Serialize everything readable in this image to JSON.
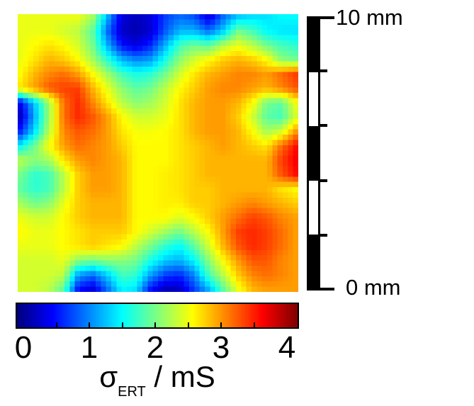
{
  "chart_data": {
    "type": "heatmap",
    "title": "",
    "xlabel": "",
    "ylabel": "",
    "colormap": "jet",
    "vmin": -0.1,
    "vmax": 4.2,
    "colorbar": {
      "label_symbol": "σ",
      "label_subscript": "ERT",
      "label_units": " / mS",
      "tick_values": [
        0,
        1,
        2,
        3,
        4
      ],
      "tick_labels": [
        "0",
        "1",
        "2",
        "3",
        "4"
      ],
      "minor_tick_values": [
        0.5,
        1,
        1.5,
        2,
        2.5,
        3,
        3.5
      ],
      "orientation": "horizontal"
    },
    "scalebar": {
      "top_label": "10 mm",
      "bottom_label": "0 mm",
      "length_mm": 10,
      "segments": 5,
      "colors": [
        "#000000",
        "#ffffff"
      ]
    },
    "grid_values_mS": [
      [
        2.5,
        2.5,
        2.5,
        2.5,
        2.5,
        2.2,
        1.2,
        0.3,
        0.15,
        0.3,
        0.7,
        0.9,
        0.8,
        0.3,
        0.9,
        1.3,
        1.4,
        1.4,
        1.5,
        1.5
      ],
      [
        2.5,
        2.5,
        2.5,
        2.4,
        2.3,
        1.9,
        0.9,
        0.2,
        0.1,
        0.25,
        0.8,
        1.2,
        1.2,
        0.9,
        1.3,
        2.0,
        1.8,
        1.5,
        1.4,
        1.4
      ],
      [
        2.5,
        2.6,
        2.7,
        2.6,
        2.4,
        2.0,
        1.2,
        0.5,
        0.3,
        0.6,
        1.2,
        1.8,
        2.0,
        1.9,
        2.3,
        2.5,
        2.3,
        2.0,
        1.8,
        1.7
      ],
      [
        2.5,
        2.7,
        2.9,
        2.8,
        2.6,
        2.2,
        1.7,
        1.2,
        1.0,
        1.1,
        1.6,
        2.1,
        2.4,
        2.6,
        2.8,
        2.9,
        2.8,
        2.6,
        2.1,
        2.0
      ],
      [
        2.6,
        2.9,
        3.1,
        3.2,
        3.0,
        2.6,
        2.2,
        1.8,
        1.6,
        1.7,
        2.0,
        2.4,
        2.7,
        2.9,
        3.0,
        3.1,
        3.1,
        3.0,
        3.2,
        3.4
      ],
      [
        2.7,
        3.0,
        3.3,
        3.4,
        3.4,
        2.9,
        2.5,
        2.1,
        1.9,
        2.0,
        2.3,
        2.6,
        2.8,
        3.0,
        3.1,
        3.1,
        3.0,
        2.9,
        3.1,
        3.3
      ],
      [
        0.4,
        1.3,
        2.2,
        3.2,
        3.5,
        3.1,
        2.7,
        2.3,
        2.1,
        2.2,
        2.4,
        2.7,
        2.9,
        3.0,
        3.0,
        2.9,
        2.6,
        2.0,
        1.9,
        2.5
      ],
      [
        0.2,
        1.2,
        2.2,
        3.2,
        3.5,
        3.3,
        3.0,
        2.6,
        2.4,
        2.4,
        2.5,
        2.7,
        2.9,
        3.0,
        3.0,
        2.8,
        2.4,
        1.9,
        1.8,
        2.4
      ],
      [
        0.6,
        1.4,
        2.3,
        3.1,
        3.3,
        3.2,
        3.0,
        2.7,
        2.55,
        2.55,
        2.6,
        2.7,
        2.9,
        3.0,
        3.0,
        2.9,
        2.6,
        2.2,
        2.4,
        3.0
      ],
      [
        1.5,
        2.0,
        2.6,
        3.0,
        3.2,
        3.1,
        3.0,
        2.8,
        2.6,
        2.6,
        2.6,
        2.7,
        2.8,
        2.9,
        3.0,
        2.9,
        2.8,
        2.7,
        3.2,
        3.6
      ],
      [
        2.3,
        2.1,
        2.2,
        2.7,
        3.0,
        3.1,
        3.0,
        2.9,
        2.6,
        2.6,
        2.6,
        2.7,
        2.8,
        2.9,
        2.9,
        2.9,
        2.9,
        2.9,
        3.4,
        3.7
      ],
      [
        2.0,
        1.7,
        1.8,
        2.3,
        2.8,
        3.0,
        3.0,
        2.9,
        2.6,
        2.6,
        2.65,
        2.7,
        2.8,
        2.9,
        2.9,
        2.9,
        2.9,
        2.9,
        3.3,
        3.6
      ],
      [
        1.9,
        1.7,
        1.8,
        2.3,
        2.8,
        3.0,
        3.0,
        2.9,
        2.6,
        2.6,
        2.65,
        2.7,
        2.8,
        2.8,
        2.9,
        2.9,
        2.9,
        2.9,
        2.7,
        2.6
      ],
      [
        2.2,
        2.0,
        2.1,
        2.5,
        2.8,
        2.9,
        2.9,
        2.9,
        2.6,
        2.6,
        2.65,
        2.65,
        2.8,
        2.8,
        2.9,
        3.0,
        3.1,
        3.0,
        2.9,
        2.8
      ],
      [
        2.5,
        2.4,
        2.4,
        2.6,
        2.8,
        2.9,
        2.9,
        2.9,
        2.6,
        2.6,
        2.6,
        2.45,
        2.6,
        2.8,
        3.0,
        3.2,
        3.4,
        3.3,
        3.1,
        3.0
      ],
      [
        2.6,
        2.5,
        2.5,
        2.6,
        2.7,
        2.8,
        2.8,
        2.8,
        2.6,
        2.4,
        2.2,
        2.0,
        2.3,
        2.6,
        3.0,
        3.4,
        3.5,
        3.4,
        3.2,
        3.0
      ],
      [
        2.5,
        2.5,
        2.5,
        2.6,
        2.7,
        2.8,
        2.7,
        2.6,
        2.3,
        2.0,
        1.7,
        1.5,
        1.9,
        2.4,
        2.9,
        3.3,
        3.5,
        3.4,
        3.2,
        3.0
      ],
      [
        2.4,
        2.4,
        2.4,
        2.5,
        2.1,
        2.0,
        2.1,
        2.1,
        2.0,
        1.6,
        1.3,
        1.2,
        1.5,
        2.1,
        2.6,
        3.0,
        3.3,
        3.3,
        3.1,
        3.0
      ],
      [
        2.4,
        2.4,
        2.4,
        2.3,
        1.1,
        0.9,
        1.3,
        1.8,
        1.7,
        1.1,
        0.7,
        0.6,
        1.0,
        1.8,
        2.3,
        2.8,
        3.1,
        3.2,
        3.1,
        3.0
      ],
      [
        2.4,
        2.4,
        2.3,
        1.9,
        0.5,
        0.3,
        0.9,
        1.5,
        1.4,
        0.5,
        0.15,
        0.2,
        0.7,
        1.2,
        1.9,
        2.5,
        2.9,
        3.0,
        3.0,
        3.0
      ]
    ]
  }
}
